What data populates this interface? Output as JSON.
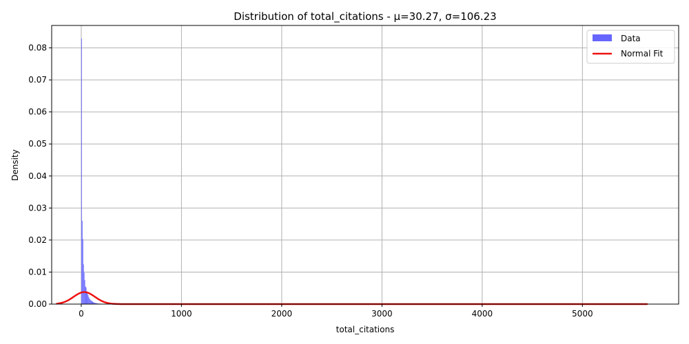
{
  "chart_data": {
    "type": "histogram",
    "title": "Distribution of total_citations - μ=30.27, σ=106.23",
    "xlabel": "total_citations",
    "ylabel": "Density",
    "xlim": [
      -295,
      5960
    ],
    "ylim": [
      0,
      0.087
    ],
    "x_ticks": [
      0,
      1000,
      2000,
      3000,
      4000,
      5000
    ],
    "x_tick_labels": [
      "0",
      "1000",
      "2000",
      "3000",
      "4000",
      "5000"
    ],
    "y_ticks": [
      0,
      0.01,
      0.02,
      0.03,
      0.04,
      0.05,
      0.06,
      0.07,
      0.08
    ],
    "y_tick_labels": [
      "0.00",
      "0.01",
      "0.02",
      "0.03",
      "0.04",
      "0.05",
      "0.06",
      "0.07",
      "0.08"
    ],
    "grid": true,
    "legend_position": "top-right",
    "mean": 30.27,
    "std": 106.23,
    "series": [
      {
        "name": "Data",
        "kind": "histogram",
        "color": "#6666ff",
        "bin_width": 6.5,
        "bins": [
          {
            "x": 0,
            "density": 0.083
          },
          {
            "x": 6.5,
            "density": 0.026
          },
          {
            "x": 13,
            "density": 0.0203
          },
          {
            "x": 19.5,
            "density": 0.0124
          },
          {
            "x": 26,
            "density": 0.0098
          },
          {
            "x": 32.5,
            "density": 0.0075
          },
          {
            "x": 39,
            "density": 0.0055
          },
          {
            "x": 45.5,
            "density": 0.0052
          },
          {
            "x": 52,
            "density": 0.004
          },
          {
            "x": 58.5,
            "density": 0.0035
          },
          {
            "x": 65,
            "density": 0.0028
          },
          {
            "x": 71.5,
            "density": 0.0022
          },
          {
            "x": 78,
            "density": 0.0018
          },
          {
            "x": 84.5,
            "density": 0.0015
          },
          {
            "x": 91,
            "density": 0.0012
          },
          {
            "x": 97.5,
            "density": 0.0011
          },
          {
            "x": 104,
            "density": 0.0009
          },
          {
            "x": 110.5,
            "density": 0.0008
          },
          {
            "x": 117,
            "density": 0.0006
          },
          {
            "x": 123.5,
            "density": 0.0005
          },
          {
            "x": 130,
            "density": 0.0004
          },
          {
            "x": 136.5,
            "density": 0.0004
          },
          {
            "x": 143,
            "density": 0.0003
          },
          {
            "x": 149.5,
            "density": 0.0003
          },
          {
            "x": 156,
            "density": 0.0002
          },
          {
            "x": 162.5,
            "density": 0.0002
          },
          {
            "x": 175.5,
            "density": 0.0002
          },
          {
            "x": 188.5,
            "density": 0.0001
          },
          {
            "x": 208,
            "density": 0.0001
          },
          {
            "x": 240.5,
            "density": 0.0001
          }
        ]
      },
      {
        "name": "Normal Fit",
        "kind": "line",
        "color": "#ee1111",
        "x_range": [
          -250,
          5650
        ]
      }
    ]
  }
}
